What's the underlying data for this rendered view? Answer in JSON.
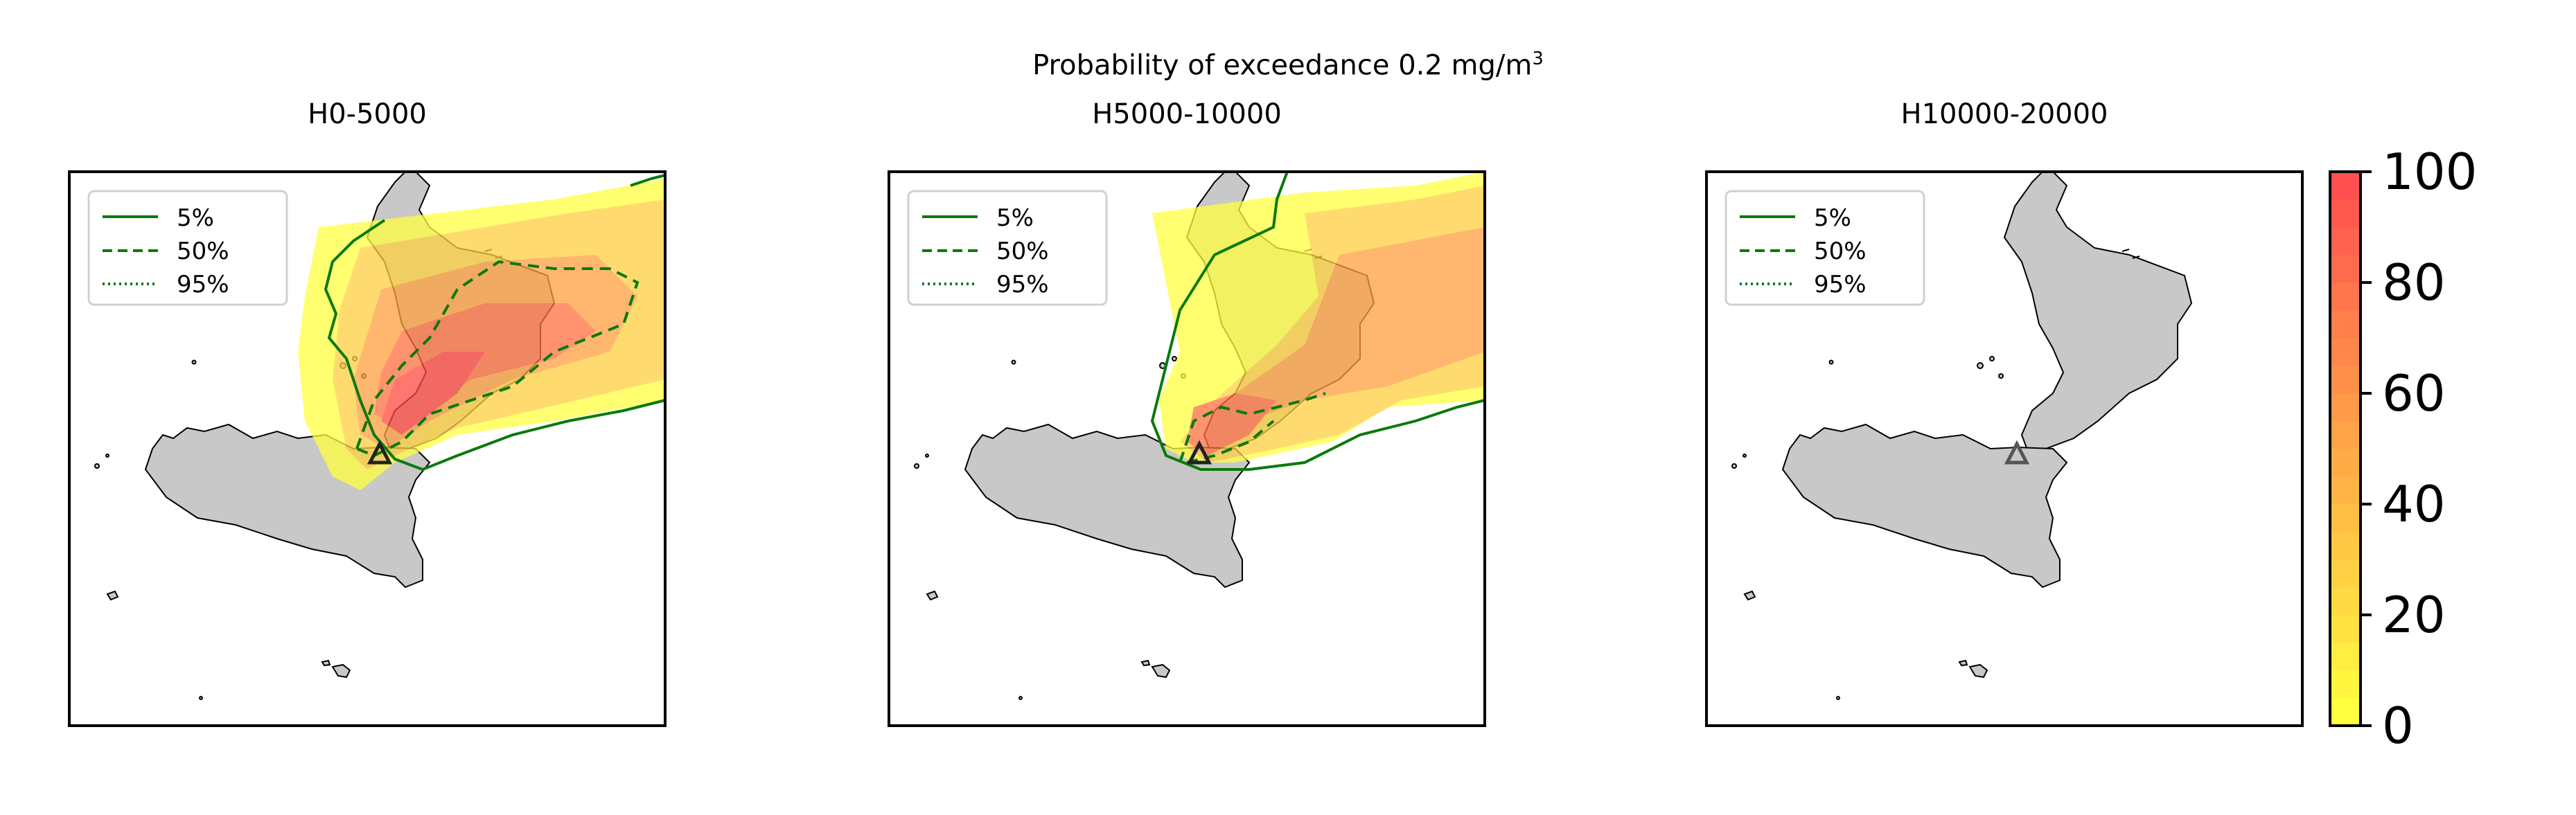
{
  "figure": {
    "title_main": "Probability of exceedance 0.2 mg/m",
    "title_sup": "3",
    "panels": [
      {
        "title": "H0-5000"
      },
      {
        "title": "H5000-10000"
      },
      {
        "title": "H10000-20000"
      }
    ]
  },
  "legend": {
    "items": [
      {
        "label": "5%",
        "style": "solid"
      },
      {
        "label": "50%",
        "style": "dashed"
      },
      {
        "label": "95%",
        "style": "dotted"
      }
    ]
  },
  "colorbar": {
    "ticks": [
      "0",
      "20",
      "40",
      "60",
      "80",
      "100"
    ],
    "colors": [
      "#ffff3f",
      "#ff5050"
    ]
  },
  "chart_data": {
    "type": "heatmap",
    "title": "Probability of exceedance 0.2 mg/m3",
    "panels": [
      "H0-5000",
      "H5000-10000",
      "H10000-20000"
    ],
    "colorbar_range": [
      0,
      100
    ],
    "contour_levels": [
      "5%",
      "50%",
      "95%"
    ],
    "source_marker": "triangle (volcano location, Sicily)",
    "legend_position": "upper-left"
  },
  "colors": {
    "land": "#c8c8c8",
    "coast": "#000000",
    "contour": "#0a7a0a",
    "low": "#ffff3f",
    "high": "#ff4040"
  }
}
